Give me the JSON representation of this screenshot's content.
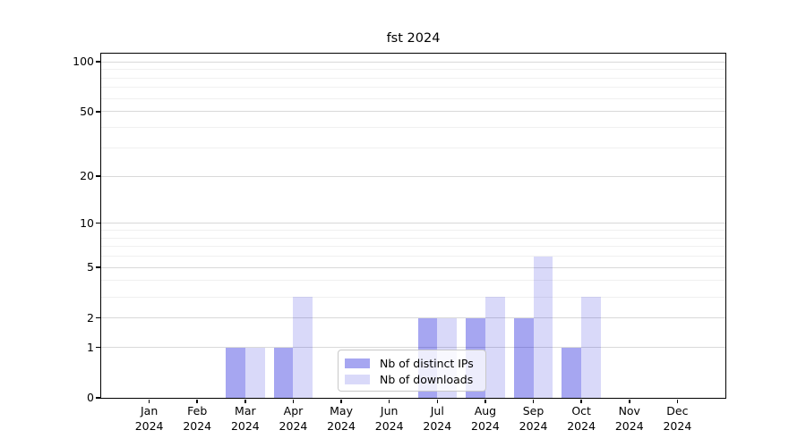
{
  "title": "fst 2024",
  "axes": {
    "y_tick_values": [
      100,
      50,
      20,
      10,
      5,
      2,
      1,
      0
    ],
    "y_minor_gridline_values": [
      3,
      4,
      6,
      7,
      8,
      9,
      30,
      40,
      60,
      70,
      80,
      90
    ],
    "x_months": [
      "Jan",
      "Feb",
      "Mar",
      "Apr",
      "May",
      "Jun",
      "Jul",
      "Aug",
      "Sep",
      "Oct",
      "Nov",
      "Dec"
    ],
    "x_year": "2024"
  },
  "legend": {
    "items": [
      {
        "label": "Nb of distinct IPs"
      },
      {
        "label": "Nb of downloads"
      }
    ]
  },
  "colors": {
    "series": [
      {
        "fill": "rgba(0,0,215,0.35)",
        "hex_on_white": "#a6a6f2"
      },
      {
        "fill": "rgba(0,0,215,0.15)",
        "hex_on_white": "#dcdcf9"
      }
    ],
    "grid_major": "#d9d9d9",
    "grid_minor": "#f0f0f0",
    "axis": "#000000",
    "legend_border": "#c8c8c8"
  },
  "chart_data": {
    "type": "bar",
    "title": "fst 2024",
    "categories": [
      "Jan 2024",
      "Feb 2024",
      "Mar 2024",
      "Apr 2024",
      "May 2024",
      "Jun 2024",
      "Jul 2024",
      "Aug 2024",
      "Sep 2024",
      "Oct 2024",
      "Nov 2024",
      "Dec 2024"
    ],
    "series": [
      {
        "name": "Nb of distinct IPs",
        "values": [
          0,
          0,
          1,
          1,
          0,
          0,
          2,
          2,
          2,
          1,
          0,
          0
        ]
      },
      {
        "name": "Nb of downloads",
        "values": [
          0,
          0,
          1,
          3,
          0,
          0,
          2,
          3,
          6,
          3,
          0,
          0
        ]
      }
    ],
    "y_scale": "log10(value+1)",
    "y_ticks": [
      0,
      1,
      2,
      5,
      10,
      20,
      50,
      100
    ],
    "ylim": [
      0,
      113
    ],
    "xlabel": "",
    "ylabel": "",
    "grid": "horizontal, major and minor",
    "legend_position": "inside lower-center"
  }
}
